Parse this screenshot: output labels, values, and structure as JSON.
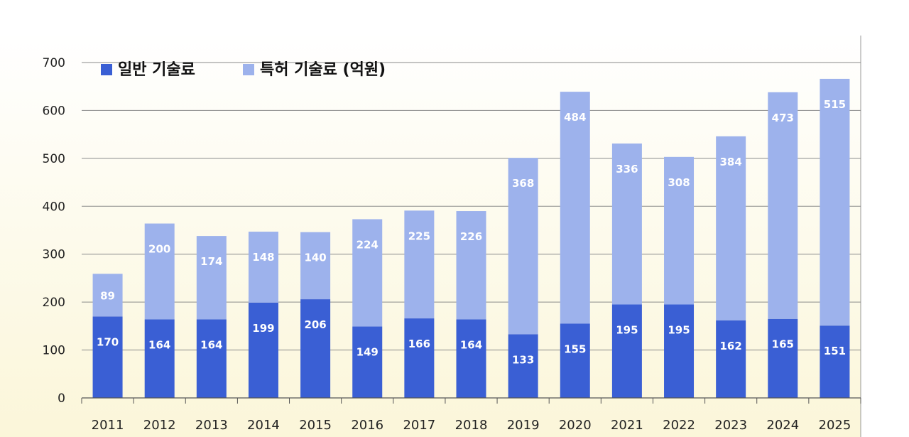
{
  "chart_data": {
    "type": "bar",
    "stacked": true,
    "categories": [
      "2011",
      "2012",
      "2013",
      "2014",
      "2015",
      "2016",
      "2017",
      "2018",
      "2019",
      "2020",
      "2021",
      "2022",
      "2023",
      "2024",
      "2025"
    ],
    "series": [
      {
        "name": "일반 기술료",
        "color": "#3a5fd4",
        "values": [
          170,
          164,
          164,
          199,
          206,
          149,
          166,
          164,
          133,
          155,
          195,
          195,
          162,
          165,
          151
        ]
      },
      {
        "name": "특허 기술료 (억원)",
        "color": "#9db2ec",
        "values": [
          89,
          200,
          174,
          148,
          140,
          224,
          225,
          226,
          368,
          484,
          336,
          308,
          384,
          473,
          515
        ]
      }
    ],
    "ylim": [
      0,
      700
    ],
    "yticks": [
      0,
      100,
      200,
      300,
      400,
      500,
      600,
      700
    ],
    "grid": true,
    "legend": "top-left"
  }
}
